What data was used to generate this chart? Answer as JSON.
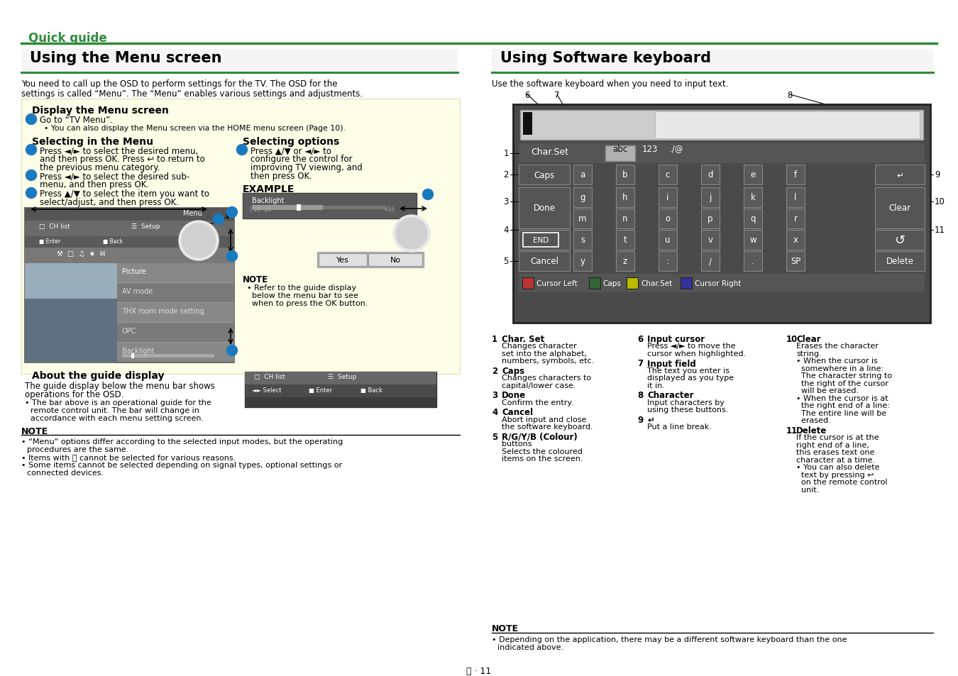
{
  "page_bg": "#ffffff",
  "header_text": "Quick guide",
  "header_color": "#2e8b3a",
  "header_line_color": "#2e8b3a",
  "left_title": "Using the Menu screen",
  "right_title": "Using Software keyboard",
  "section_line_color": "#2e8b3a",
  "yellow_bg": "#ffffdd",
  "dark_bg": "#4a4a4a",
  "key_bg": "#5a5a5a",
  "kbd_outer": "#3a3a3a",
  "blue_circle": "#1a7abf",
  "footer_text": "ⓒ · 11"
}
